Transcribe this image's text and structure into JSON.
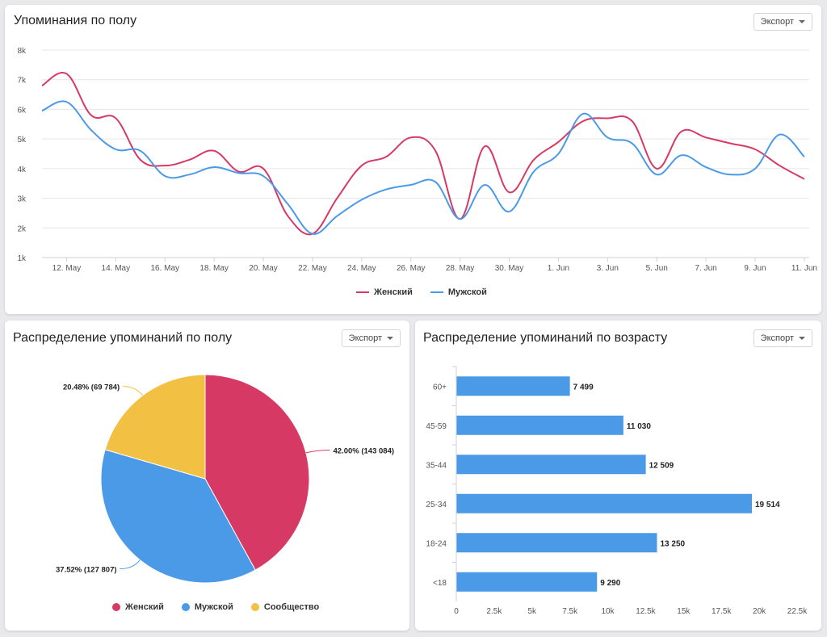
{
  "line_card": {
    "title": "Упоминания по полу",
    "export_label": "Экспорт",
    "legend": [
      {
        "label": "Женский",
        "color": "#d63a64"
      },
      {
        "label": "Мужской",
        "color": "#4a9ae8"
      }
    ]
  },
  "pie_card": {
    "title": "Распределение упоминаний по полу",
    "export_label": "Экспорт",
    "legend": [
      {
        "label": "Женский",
        "color": "#d63a64"
      },
      {
        "label": "Мужской",
        "color": "#4a9ae8"
      },
      {
        "label": "Сообщество",
        "color": "#f2c043"
      }
    ]
  },
  "bar_card": {
    "title": "Распределение упоминаний по возрасту",
    "export_label": "Экспорт"
  },
  "chart_data": [
    {
      "type": "line",
      "title": "Упоминания по полу",
      "ylim": [
        1000,
        8000
      ],
      "yticks": [
        "1k",
        "2k",
        "3k",
        "4k",
        "5k",
        "6k",
        "7k",
        "8k"
      ],
      "ytick_values": [
        1000,
        2000,
        3000,
        4000,
        5000,
        6000,
        7000,
        8000
      ],
      "x_tick_labels": [
        "12. May",
        "14. May",
        "16. May",
        "18. May",
        "20. May",
        "22. May",
        "24. May",
        "26. May",
        "28. May",
        "30. May",
        "1. Jun",
        "3. Jun",
        "5. Jun",
        "7. Jun",
        "9. Jun",
        "11. Jun"
      ],
      "x_tick_days": [
        1,
        3,
        5,
        7,
        9,
        11,
        13,
        15,
        17,
        19,
        21,
        23,
        25,
        27,
        29,
        31
      ],
      "x_days": [
        0,
        1,
        2,
        3,
        4,
        5,
        6,
        7,
        8,
        9,
        10,
        11,
        12,
        13,
        14,
        15,
        16,
        17,
        18,
        19,
        20,
        21,
        22,
        23,
        24,
        25,
        26,
        27,
        28,
        29,
        30,
        31
      ],
      "grid": true,
      "legend_position": "bottom",
      "series": [
        {
          "name": "Женский",
          "color": "#d63a64",
          "values": [
            6800,
            7200,
            5800,
            5700,
            4300,
            4100,
            4300,
            4600,
            3900,
            4000,
            2400,
            1800,
            3000,
            4100,
            4400,
            5050,
            4600,
            2300,
            4750,
            3200,
            4300,
            4900,
            5600,
            5700,
            5600,
            4000,
            5250,
            5050,
            4850,
            4650,
            4100,
            3650
          ]
        },
        {
          "name": "Мужской",
          "color": "#4a9ae8",
          "values": [
            5950,
            6250,
            5300,
            4650,
            4600,
            3750,
            3800,
            4050,
            3850,
            3750,
            2800,
            1800,
            2400,
            2950,
            3300,
            3450,
            3550,
            2300,
            3450,
            2550,
            3900,
            4500,
            5850,
            5050,
            4850,
            3800,
            4450,
            4050,
            3800,
            4000,
            5150,
            4400
          ]
        }
      ]
    },
    {
      "type": "pie",
      "title": "Распределение упоминаний по полу",
      "slices": [
        {
          "name": "Женский",
          "value": 143084,
          "percent": 42.0,
          "label": "42.00% (143 084)",
          "color": "#d63a64"
        },
        {
          "name": "Мужской",
          "value": 127807,
          "percent": 37.52,
          "label": "37.52% (127 807)",
          "color": "#4a9ae8"
        },
        {
          "name": "Сообщество",
          "value": 69784,
          "percent": 20.48,
          "label": "20.48% (69 784)",
          "color": "#f2c043"
        }
      ],
      "legend_position": "bottom"
    },
    {
      "type": "bar",
      "orientation": "horizontal",
      "title": "Распределение упоминаний по возрасту",
      "categories": [
        "60+",
        "45-59",
        "35-44",
        "25-34",
        "18-24",
        "<18"
      ],
      "values": [
        7499,
        11030,
        12509,
        19514,
        13250,
        9290
      ],
      "data_labels": [
        "7 499",
        "11 030",
        "12 509",
        "19 514",
        "13 250",
        "9 290"
      ],
      "xlim": [
        0,
        22500
      ],
      "xticks": [
        "0",
        "2.5k",
        "5k",
        "7.5k",
        "10k",
        "12.5k",
        "15k",
        "17.5k",
        "20k",
        "22.5k"
      ],
      "xtick_values": [
        0,
        2500,
        5000,
        7500,
        10000,
        12500,
        15000,
        17500,
        20000,
        22500
      ],
      "color": "#4a9ae8"
    }
  ]
}
